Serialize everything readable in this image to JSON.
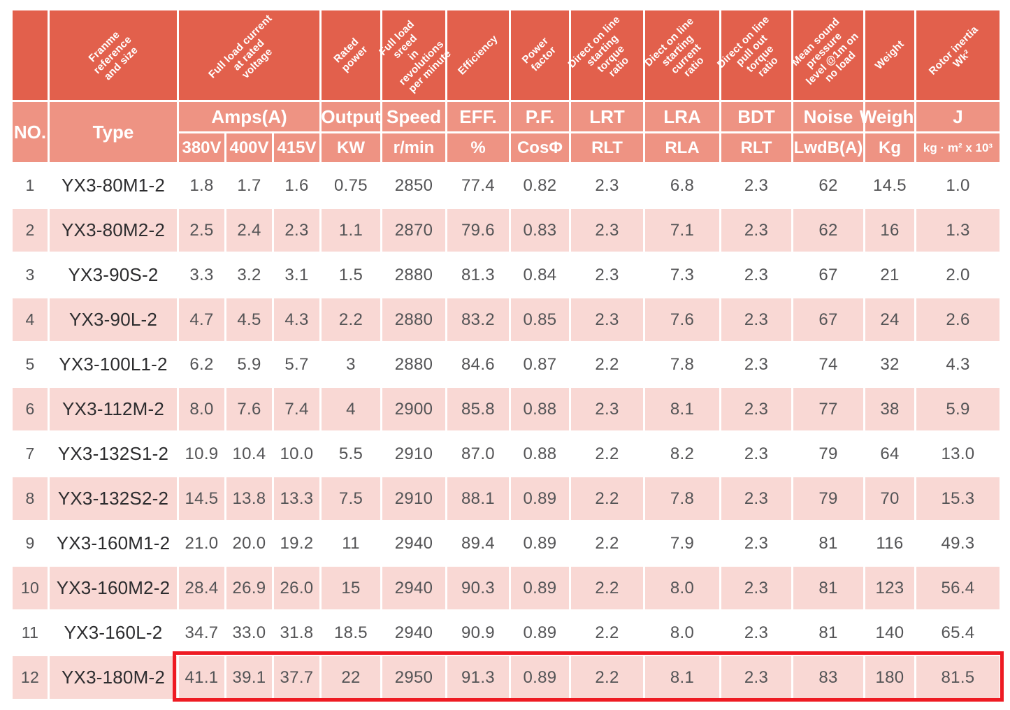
{
  "colors": {
    "header_dark": "#E2604C",
    "header_light": "#EE9383",
    "row_pink": "#F9D8D4",
    "row_white": "#FFFFFF",
    "highlight_red": "#EE1B23",
    "header_text": "#FFFFFF",
    "data_text": "#545456",
    "type_text": "#2C2C2E"
  },
  "table": {
    "rotated_headers": {
      "type": "Franme\nreference\nand size",
      "amps": "Full load current\nat rated\nvoltage",
      "output": "Rated power",
      "speed": "Full load sreed\nin revolutions\nper minute",
      "eff": "Efficiency",
      "pf": "Power factor",
      "lrt": "Direct on line\nstarting torque\nratio",
      "lra": "Diect on line\nstarting current\nratio",
      "bdt": "Direct on line\npull out torque\nratio",
      "noise": "Mean sound\npressure\nlevel @1m on\nno load",
      "weight": "Weight",
      "j": "Rotor inertia\nWk²"
    },
    "group_headers": {
      "no": "NO.",
      "type": "Type",
      "amps": "Amps(A)",
      "output": "Output",
      "speed": "Speed",
      "eff": "EFF.",
      "pf": "P.F.",
      "lrt": "LRT",
      "lra": "LRA",
      "bdt": "BDT",
      "noise": "Noise",
      "weight": "Weight",
      "j": "J"
    },
    "unit_headers": {
      "a380": "380V",
      "a400": "400V",
      "a415": "415V",
      "kw": "KW",
      "speed": "r/min",
      "eff": "%",
      "pf": "CosΦ",
      "lrt": "RLT",
      "lra": "RLA",
      "bdt": "RLT",
      "noise": "LwdB(A)",
      "weight": "Kg",
      "j": "kg · m² x 10³"
    },
    "highlighted_row_no": "12",
    "rows": [
      {
        "no": "1",
        "type": "YX3-80M1-2",
        "a380": "1.8",
        "a400": "1.7",
        "a415": "1.6",
        "kw": "0.75",
        "speed": "2850",
        "eff": "77.4",
        "pf": "0.82",
        "lrt": "2.3",
        "lra": "6.8",
        "bdt": "2.3",
        "noise": "62",
        "weight": "14.5",
        "j": "1.0"
      },
      {
        "no": "2",
        "type": "YX3-80M2-2",
        "a380": "2.5",
        "a400": "2.4",
        "a415": "2.3",
        "kw": "1.1",
        "speed": "2870",
        "eff": "79.6",
        "pf": "0.83",
        "lrt": "2.3",
        "lra": "7.1",
        "bdt": "2.3",
        "noise": "62",
        "weight": "16",
        "j": "1.3"
      },
      {
        "no": "3",
        "type": "YX3-90S-2",
        "a380": "3.3",
        "a400": "3.2",
        "a415": "3.1",
        "kw": "1.5",
        "speed": "2880",
        "eff": "81.3",
        "pf": "0.84",
        "lrt": "2.3",
        "lra": "7.3",
        "bdt": "2.3",
        "noise": "67",
        "weight": "21",
        "j": "2.0"
      },
      {
        "no": "4",
        "type": "YX3-90L-2",
        "a380": "4.7",
        "a400": "4.5",
        "a415": "4.3",
        "kw": "2.2",
        "speed": "2880",
        "eff": "83.2",
        "pf": "0.85",
        "lrt": "2.3",
        "lra": "7.6",
        "bdt": "2.3",
        "noise": "67",
        "weight": "24",
        "j": "2.6"
      },
      {
        "no": "5",
        "type": "YX3-100L1-2",
        "a380": "6.2",
        "a400": "5.9",
        "a415": "5.7",
        "kw": "3",
        "speed": "2880",
        "eff": "84.6",
        "pf": "0.87",
        "lrt": "2.2",
        "lra": "7.8",
        "bdt": "2.3",
        "noise": "74",
        "weight": "32",
        "j": "4.3"
      },
      {
        "no": "6",
        "type": "YX3-112M-2",
        "a380": "8.0",
        "a400": "7.6",
        "a415": "7.4",
        "kw": "4",
        "speed": "2900",
        "eff": "85.8",
        "pf": "0.88",
        "lrt": "2.3",
        "lra": "8.1",
        "bdt": "2.3",
        "noise": "77",
        "weight": "38",
        "j": "5.9"
      },
      {
        "no": "7",
        "type": "YX3-132S1-2",
        "a380": "10.9",
        "a400": "10.4",
        "a415": "10.0",
        "kw": "5.5",
        "speed": "2910",
        "eff": "87.0",
        "pf": "0.88",
        "lrt": "2.2",
        "lra": "8.2",
        "bdt": "2.3",
        "noise": "79",
        "weight": "64",
        "j": "13.0"
      },
      {
        "no": "8",
        "type": "YX3-132S2-2",
        "a380": "14.5",
        "a400": "13.8",
        "a415": "13.3",
        "kw": "7.5",
        "speed": "2910",
        "eff": "88.1",
        "pf": "0.89",
        "lrt": "2.2",
        "lra": "7.8",
        "bdt": "2.3",
        "noise": "79",
        "weight": "70",
        "j": "15.3"
      },
      {
        "no": "9",
        "type": "YX3-160M1-2",
        "a380": "21.0",
        "a400": "20.0",
        "a415": "19.2",
        "kw": "11",
        "speed": "2940",
        "eff": "89.4",
        "pf": "0.89",
        "lrt": "2.2",
        "lra": "7.9",
        "bdt": "2.3",
        "noise": "81",
        "weight": "116",
        "j": "49.3"
      },
      {
        "no": "10",
        "type": "YX3-160M2-2",
        "a380": "28.4",
        "a400": "26.9",
        "a415": "26.0",
        "kw": "15",
        "speed": "2940",
        "eff": "90.3",
        "pf": "0.89",
        "lrt": "2.2",
        "lra": "8.0",
        "bdt": "2.3",
        "noise": "81",
        "weight": "123",
        "j": "56.4"
      },
      {
        "no": "11",
        "type": "YX3-160L-2",
        "a380": "34.7",
        "a400": "33.0",
        "a415": "31.8",
        "kw": "18.5",
        "speed": "2940",
        "eff": "90.9",
        "pf": "0.89",
        "lrt": "2.2",
        "lra": "8.0",
        "bdt": "2.3",
        "noise": "81",
        "weight": "140",
        "j": "65.4"
      },
      {
        "no": "12",
        "type": "YX3-180M-2",
        "a380": "41.1",
        "a400": "39.1",
        "a415": "37.7",
        "kw": "22",
        "speed": "2950",
        "eff": "91.3",
        "pf": "0.89",
        "lrt": "2.2",
        "lra": "8.1",
        "bdt": "2.3",
        "noise": "83",
        "weight": "180",
        "j": "81.5"
      }
    ]
  }
}
